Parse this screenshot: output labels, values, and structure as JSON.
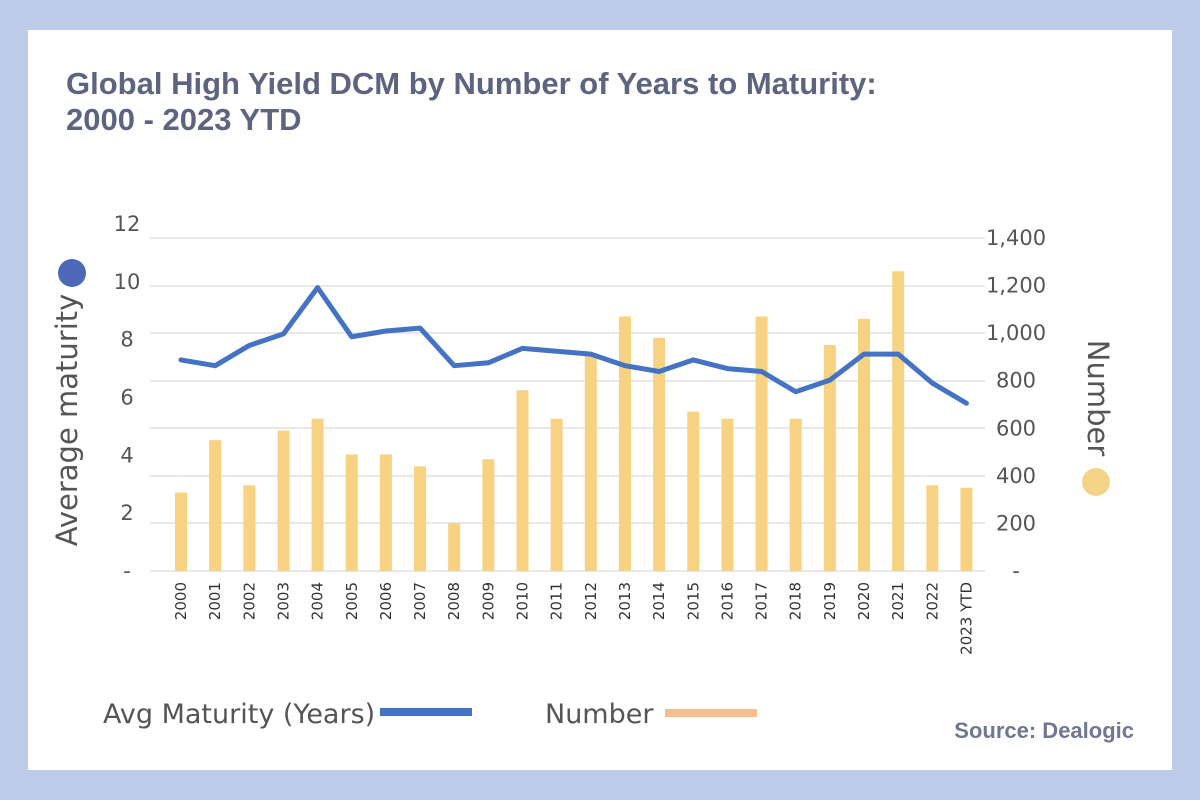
{
  "header": {
    "title_line1": "Global High Yield DCM by Number of Years to Maturity:",
    "title_line2": "2000 - 2023 YTD"
  },
  "source": "Source: Dealogic",
  "colors": {
    "line": "#4472c4",
    "bar": "#f8d283",
    "legend_bar": "#f6c08e",
    "marker_left": "#4d68b4",
    "marker_right": "#f3d487",
    "grid": "#d9d9d9"
  },
  "chart_data": {
    "type": "bar+line",
    "categories": [
      "2000",
      "2001",
      "2002",
      "2003",
      "2004",
      "2005",
      "2006",
      "2007",
      "2008",
      "2009",
      "2010",
      "2011",
      "2012",
      "2013",
      "2014",
      "2015",
      "2016",
      "2017",
      "2018",
      "2019",
      "2020",
      "2021",
      "2022",
      "2023 YTD"
    ],
    "series": [
      {
        "name": "Avg Maturity (Years)",
        "type": "line",
        "axis": "left",
        "values": [
          7.3,
          7.1,
          7.8,
          8.2,
          9.8,
          8.1,
          8.3,
          8.4,
          7.1,
          7.2,
          7.7,
          7.6,
          7.5,
          7.1,
          6.9,
          7.3,
          7.0,
          6.9,
          6.2,
          6.6,
          7.5,
          7.5,
          6.5,
          5.8
        ]
      },
      {
        "name": "Number",
        "type": "bar",
        "axis": "right",
        "values": [
          330,
          550,
          360,
          590,
          640,
          490,
          490,
          440,
          200,
          470,
          760,
          640,
          910,
          1070,
          980,
          670,
          640,
          1070,
          640,
          950,
          1060,
          1260,
          360,
          350
        ]
      }
    ],
    "y_left": {
      "label": "Average maturity",
      "range": [
        0,
        12
      ],
      "ticks": [
        "-",
        "2",
        "4",
        "6",
        "8",
        "10",
        "12"
      ],
      "tick_values": [
        0,
        2,
        4,
        6,
        8,
        10,
        12
      ]
    },
    "y_right": {
      "label": "Number",
      "range": [
        0,
        1400
      ],
      "ticks": [
        "-",
        "200",
        "400",
        "600",
        "800",
        "1,000",
        "1,200",
        "1,400"
      ],
      "tick_values": [
        0,
        200,
        400,
        600,
        800,
        1000,
        1200,
        1400
      ]
    },
    "legend_placement": "bottom",
    "grid": true
  }
}
